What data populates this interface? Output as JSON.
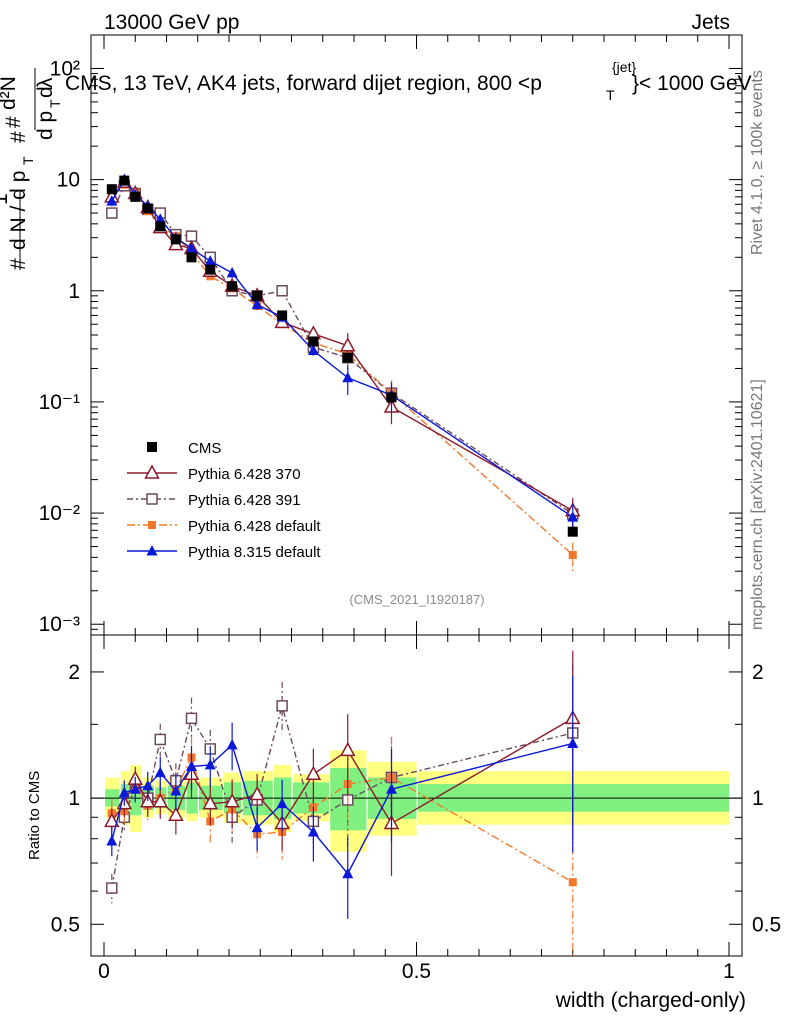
{
  "header": {
    "left": "13000 GeV pp",
    "right": "Jets",
    "title": "CMS, 13 TeV, AK4 jets, forward dijet region, 800 <p",
    "title_sup": "{jet}",
    "title_sub": "T",
    "title_end": "}< 1000 GeV"
  },
  "side": {
    "rivet": "Rivet 4.1.0, ≥ 100k events",
    "mcplots": "mcplots.cern.ch [arXiv:2401.10621]"
  },
  "watermark": "(CMS_2021_I1920187)",
  "axes": {
    "top_ylabel": "# 1/dN/dpT  # d²N/dpT dλ",
    "bottom_ylabel": "Ratio to CMS",
    "xlabel": "width (charged-only)",
    "top_yticks": [
      "10⁻³",
      "10⁻²",
      "10⁻¹",
      "1",
      "10",
      "10²"
    ],
    "bottom_yticks": [
      "0.5",
      "1",
      "2"
    ],
    "xticks": [
      "0",
      "0.5",
      "1"
    ]
  },
  "legend": [
    {
      "label": "CMS",
      "color": "#000000"
    },
    {
      "label": "Pythia 6.428 370",
      "color": "#8b1a2b"
    },
    {
      "label": "Pythia 6.428 391",
      "color": "#6b4a5e"
    },
    {
      "label": "Pythia 6.428 default",
      "color": "#f2782a"
    },
    {
      "label": "Pythia 8.315 default",
      "color": "#0a18d8"
    }
  ],
  "chart_data": {
    "type": "line",
    "title": "CMS, 13 TeV, AK4 jets, forward dijet region, 800 < pT < 1000 GeV",
    "xlabel": "width (charged-only)",
    "ylabel": "(1/dN/dpT) d²N/dpT dλ",
    "xlim": [
      0,
      1
    ],
    "ylim": [
      0.0008,
      200
    ],
    "yscale": "log",
    "ratio_ylim": [
      0.42,
      2.45
    ],
    "x": [
      0.0125,
      0.0325,
      0.05,
      0.07,
      0.09,
      0.115,
      0.14,
      0.17,
      0.205,
      0.245,
      0.285,
      0.335,
      0.39,
      0.46,
      0.75
    ],
    "series": [
      {
        "name": "CMS",
        "values": [
          8.2,
          9.8,
          7.0,
          5.5,
          3.8,
          2.9,
          2.0,
          1.55,
          1.1,
          0.9,
          0.6,
          0.35,
          0.25,
          0.11,
          0.0068
        ]
      },
      {
        "name": "Pythia 6.428 370",
        "values": [
          7.0,
          9.5,
          7.5,
          5.6,
          3.7,
          2.6,
          2.4,
          1.5,
          1.1,
          0.9,
          0.52,
          0.41,
          0.32,
          0.09,
          0.0105
        ]
      },
      {
        "name": "Pythia 6.428 391",
        "values": [
          5.0,
          8.8,
          7.5,
          5.4,
          5.0,
          3.2,
          3.1,
          2.0,
          1.0,
          0.9,
          1.0,
          0.31,
          0.25,
          0.12,
          0.0098
        ]
      },
      {
        "name": "Pythia 6.428 default",
        "values": [
          7.4,
          9.0,
          7.6,
          5.2,
          3.8,
          3.1,
          2.2,
          1.35,
          1.05,
          0.73,
          0.5,
          0.34,
          0.27,
          0.12,
          0.0042
        ]
      },
      {
        "name": "Pythia 8.315 default",
        "values": [
          6.4,
          10.0,
          7.3,
          5.8,
          4.4,
          3.0,
          2.4,
          1.85,
          1.45,
          0.75,
          0.58,
          0.29,
          0.165,
          0.115,
          0.0092
        ]
      }
    ],
    "ratio_series": [
      {
        "name": "Pythia 6.428 370",
        "values": [
          0.88,
          0.97,
          1.11,
          0.98,
          0.98,
          0.91,
          1.14,
          0.97,
          0.98,
          1.02,
          0.87,
          1.14,
          1.3,
          0.87,
          1.55
        ]
      },
      {
        "name": "Pythia 6.428 391",
        "values": [
          0.61,
          0.9,
          1.07,
          1.0,
          1.38,
          1.1,
          1.55,
          1.31,
          0.9,
          0.99,
          1.66,
          0.88,
          0.99,
          1.12,
          1.43
        ]
      },
      {
        "name": "Pythia 6.428 default",
        "values": [
          0.92,
          0.93,
          1.08,
          0.96,
          1.0,
          1.05,
          1.25,
          0.88,
          0.94,
          0.82,
          0.83,
          0.95,
          1.08,
          1.12,
          0.63
        ]
      },
      {
        "name": "Pythia 8.315 default",
        "values": [
          0.79,
          1.03,
          1.05,
          1.07,
          1.15,
          1.04,
          1.19,
          1.2,
          1.34,
          0.85,
          0.97,
          0.83,
          0.66,
          1.05,
          1.35
        ]
      }
    ]
  }
}
